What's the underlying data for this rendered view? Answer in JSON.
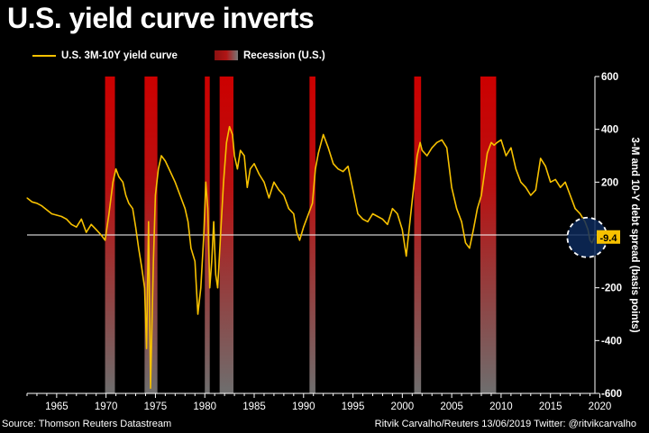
{
  "title": "U.S. yield curve inverts",
  "legend": {
    "line_label": "U.S. 3M-10Y yield curve",
    "recession_label": "Recession (U.S.)"
  },
  "footer": {
    "source": "Source: Thomson Reuters Datastream",
    "credit": "Ritvik Carvalho/Reuters 13/06/2019 Twitter: @ritvikcarvalho"
  },
  "colors": {
    "line": "#f7c100",
    "recession_top": "#cc0000",
    "recession_bottom": "#6e6e6e",
    "latest_label_bg": "#f7c100",
    "highlight_circle": "#0d2a5c"
  },
  "chart_data": {
    "type": "line",
    "ylabel": "3-M and 10-Y debt spread (basis points)",
    "xlim": [
      1962.0,
      2019.5
    ],
    "ylim": [
      -600,
      600
    ],
    "yticks": [
      -600,
      -400,
      -200,
      0,
      200,
      400,
      600
    ],
    "ytick_labels": [
      "-600",
      "-400",
      "-200",
      "0",
      "200",
      "400",
      "600"
    ],
    "xticks": [
      1965,
      1970,
      1975,
      1980,
      1985,
      1990,
      1995,
      2000,
      2005,
      2010,
      2015,
      2020
    ],
    "xtick_labels": [
      "1965",
      "1970",
      "1975",
      "1980",
      "1985",
      "1990",
      "1995",
      "2000",
      "2005",
      "2010",
      "2015",
      "2020"
    ],
    "zero_line": 0,
    "latest_value": -9.4,
    "latest_label": "-9.4",
    "recessions": [
      {
        "start": 1969.9,
        "end": 1970.9
      },
      {
        "start": 1973.9,
        "end": 1975.2
      },
      {
        "start": 1980.0,
        "end": 1980.5
      },
      {
        "start": 1981.5,
        "end": 1982.9
      },
      {
        "start": 1990.6,
        "end": 1991.2
      },
      {
        "start": 2001.2,
        "end": 2001.9
      },
      {
        "start": 2007.9,
        "end": 2009.5
      }
    ],
    "series": [
      {
        "name": "U.S. 3M-10Y yield curve",
        "x": [
          1962.0,
          1962.5,
          1963.0,
          1963.5,
          1964.0,
          1964.5,
          1965.0,
          1965.5,
          1966.0,
          1966.5,
          1967.0,
          1967.5,
          1968.0,
          1968.5,
          1969.0,
          1969.5,
          1969.9,
          1970.3,
          1970.7,
          1971.0,
          1971.3,
          1971.7,
          1972.0,
          1972.3,
          1972.7,
          1973.0,
          1973.3,
          1973.6,
          1973.9,
          1974.1,
          1974.3,
          1974.5,
          1974.8,
          1975.0,
          1975.3,
          1975.6,
          1976.0,
          1976.5,
          1977.0,
          1977.5,
          1978.0,
          1978.3,
          1978.6,
          1979.0,
          1979.3,
          1979.6,
          1979.9,
          1980.1,
          1980.3,
          1980.5,
          1980.7,
          1980.9,
          1981.1,
          1981.3,
          1981.6,
          1981.9,
          1982.2,
          1982.5,
          1982.8,
          1983.0,
          1983.3,
          1983.6,
          1984.0,
          1984.3,
          1984.6,
          1985.0,
          1985.5,
          1986.0,
          1986.5,
          1987.0,
          1987.5,
          1988.0,
          1988.5,
          1989.0,
          1989.3,
          1989.6,
          1990.0,
          1990.5,
          1990.9,
          1991.2,
          1991.5,
          1992.0,
          1992.5,
          1993.0,
          1993.5,
          1994.0,
          1994.5,
          1995.0,
          1995.5,
          1996.0,
          1996.5,
          1997.0,
          1997.5,
          1998.0,
          1998.5,
          1999.0,
          1999.5,
          2000.0,
          2000.4,
          2000.8,
          2001.2,
          2001.5,
          2001.8,
          2002.0,
          2002.5,
          2003.0,
          2003.5,
          2004.0,
          2004.5,
          2005.0,
          2005.5,
          2006.0,
          2006.4,
          2006.8,
          2007.2,
          2007.6,
          2008.0,
          2008.3,
          2008.6,
          2009.0,
          2009.3,
          2009.6,
          2010.0,
          2010.5,
          2011.0,
          2011.5,
          2012.0,
          2012.5,
          2013.0,
          2013.5,
          2014.0,
          2014.5,
          2015.0,
          2015.5,
          2016.0,
          2016.5,
          2017.0,
          2017.5,
          2018.0,
          2018.5,
          2018.8,
          2019.0,
          2019.2,
          2019.45
        ],
        "values": [
          140,
          125,
          120,
          110,
          95,
          80,
          75,
          70,
          60,
          40,
          30,
          60,
          10,
          40,
          20,
          0,
          -20,
          80,
          200,
          250,
          220,
          200,
          150,
          120,
          100,
          30,
          -50,
          -120,
          -200,
          -430,
          50,
          -580,
          -100,
          150,
          250,
          300,
          280,
          240,
          200,
          150,
          100,
          50,
          -50,
          -100,
          -300,
          -200,
          0,
          200,
          100,
          -200,
          -100,
          50,
          -150,
          -200,
          0,
          200,
          350,
          410,
          380,
          300,
          250,
          320,
          300,
          180,
          250,
          270,
          230,
          200,
          140,
          200,
          170,
          150,
          100,
          80,
          10,
          -20,
          30,
          80,
          120,
          250,
          310,
          380,
          330,
          270,
          250,
          240,
          260,
          170,
          80,
          60,
          50,
          80,
          70,
          60,
          40,
          100,
          80,
          20,
          -80,
          60,
          200,
          300,
          350,
          320,
          300,
          330,
          350,
          360,
          330,
          180,
          100,
          50,
          -30,
          -50,
          20,
          100,
          150,
          230,
          310,
          350,
          340,
          350,
          360,
          300,
          330,
          250,
          200,
          180,
          150,
          170,
          290,
          260,
          200,
          210,
          180,
          200,
          150,
          100,
          80,
          50,
          20,
          -20,
          -30,
          -9.4
        ]
      }
    ]
  }
}
